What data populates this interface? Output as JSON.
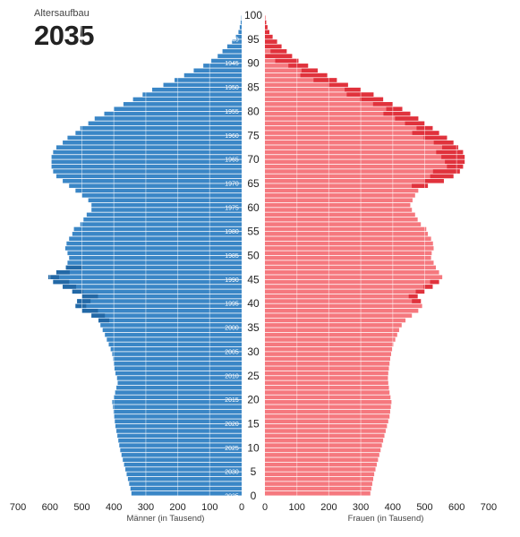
{
  "header": {
    "subtitle": "Altersaufbau",
    "year": "2035"
  },
  "colors": {
    "male": "#3a86c6",
    "male_dark": "#2268a6",
    "female": "#f5787e",
    "female_dark": "#e0323c"
  },
  "chart_data": {
    "type": "bar",
    "orientation": "horizontal-pyramid",
    "title": "2035",
    "x_ticks_left": [
      700,
      600,
      500,
      400,
      300,
      200,
      100,
      0
    ],
    "x_ticks_right": [
      0,
      100,
      200,
      300,
      400,
      500,
      600,
      700
    ],
    "xlabel_left": "Männer (in Tausend)",
    "xlabel_right": "Frauen (in Tausend)",
    "xlim": [
      0,
      700
    ],
    "age_ticks": [
      0,
      5,
      10,
      15,
      20,
      25,
      30,
      35,
      40,
      45,
      50,
      55,
      60,
      65,
      70,
      75,
      80,
      85,
      90,
      95,
      100
    ],
    "birth_year_labels": [
      {
        "age": 0,
        "label": "2035"
      },
      {
        "age": 5,
        "label": "2030"
      },
      {
        "age": 10,
        "label": "2025"
      },
      {
        "age": 15,
        "label": "2020"
      },
      {
        "age": 20,
        "label": "2015"
      },
      {
        "age": 25,
        "label": "2010"
      },
      {
        "age": 30,
        "label": "2005"
      },
      {
        "age": 35,
        "label": "2000"
      },
      {
        "age": 40,
        "label": "1995"
      },
      {
        "age": 45,
        "label": "1990"
      },
      {
        "age": 50,
        "label": "1985"
      },
      {
        "age": 55,
        "label": "1980"
      },
      {
        "age": 60,
        "label": "1975"
      },
      {
        "age": 65,
        "label": "1970"
      },
      {
        "age": 70,
        "label": "1965"
      },
      {
        "age": 75,
        "label": "1960"
      },
      {
        "age": 80,
        "label": "1955"
      },
      {
        "age": 85,
        "label": "1950"
      },
      {
        "age": 90,
        "label": "1945"
      },
      {
        "age": 95,
        "label": "1940"
      }
    ],
    "ages": [
      0,
      1,
      2,
      3,
      4,
      5,
      6,
      7,
      8,
      9,
      10,
      11,
      12,
      13,
      14,
      15,
      16,
      17,
      18,
      19,
      20,
      21,
      22,
      23,
      24,
      25,
      26,
      27,
      28,
      29,
      30,
      31,
      32,
      33,
      34,
      35,
      36,
      37,
      38,
      39,
      40,
      41,
      42,
      43,
      44,
      45,
      46,
      47,
      48,
      49,
      50,
      51,
      52,
      53,
      54,
      55,
      56,
      57,
      58,
      59,
      60,
      61,
      62,
      63,
      64,
      65,
      66,
      67,
      68,
      69,
      70,
      71,
      72,
      73,
      74,
      75,
      76,
      77,
      78,
      79,
      80,
      81,
      82,
      83,
      84,
      85,
      86,
      87,
      88,
      89,
      90,
      91,
      92,
      93,
      94,
      95,
      96,
      97,
      98,
      99
    ],
    "series": [
      {
        "name": "Männer",
        "values": [
          345,
          348,
          352,
          356,
          360,
          364,
          368,
          372,
          376,
          380,
          383,
          386,
          389,
          392,
          395,
          397,
          399,
          401,
          403,
          405,
          400,
          396,
          392,
          388,
          390,
          395,
          398,
          400,
          402,
          405,
          410,
          416,
          422,
          428,
          435,
          442,
          448,
          470,
          500,
          520,
          515,
          500,
          530,
          560,
          590,
          605,
          580,
          550,
          545,
          540,
          545,
          552,
          548,
          540,
          530,
          525,
          505,
          495,
          485,
          470,
          470,
          480,
          500,
          520,
          540,
          560,
          580,
          590,
          595,
          595,
          595,
          590,
          580,
          560,
          545,
          520,
          505,
          480,
          460,
          430,
          400,
          370,
          340,
          310,
          280,
          245,
          210,
          180,
          150,
          120,
          95,
          75,
          60,
          45,
          30,
          18,
          10,
          6,
          3,
          1
        ]
      },
      {
        "name": "Frauen",
        "values": [
          330,
          333,
          336,
          339,
          342,
          346,
          350,
          354,
          358,
          362,
          366,
          370,
          374,
          378,
          382,
          386,
          390,
          392,
          394,
          396,
          393,
          390,
          388,
          386,
          385,
          386,
          388,
          390,
          392,
          395,
          398,
          402,
          408,
          414,
          420,
          428,
          440,
          460,
          480,
          492,
          488,
          478,
          500,
          525,
          545,
          555,
          545,
          535,
          528,
          520,
          522,
          528,
          526,
          520,
          510,
          505,
          488,
          478,
          470,
          460,
          455,
          462,
          470,
          480,
          510,
          560,
          590,
          610,
          620,
          625,
          625,
          620,
          605,
          590,
          570,
          545,
          525,
          500,
          480,
          455,
          430,
          400,
          370,
          340,
          300,
          260,
          225,
          195,
          165,
          135,
          105,
          85,
          68,
          52,
          38,
          24,
          14,
          8,
          4,
          2
        ]
      }
    ],
    "highlight_ranges": [
      {
        "from_age": 36,
        "to_age": 47,
        "series": "Männer"
      },
      {
        "from_age": 40,
        "to_age": 44,
        "series": "Frauen"
      },
      {
        "from_age": 64,
        "to_age": 98,
        "series": "Frauen"
      }
    ]
  }
}
